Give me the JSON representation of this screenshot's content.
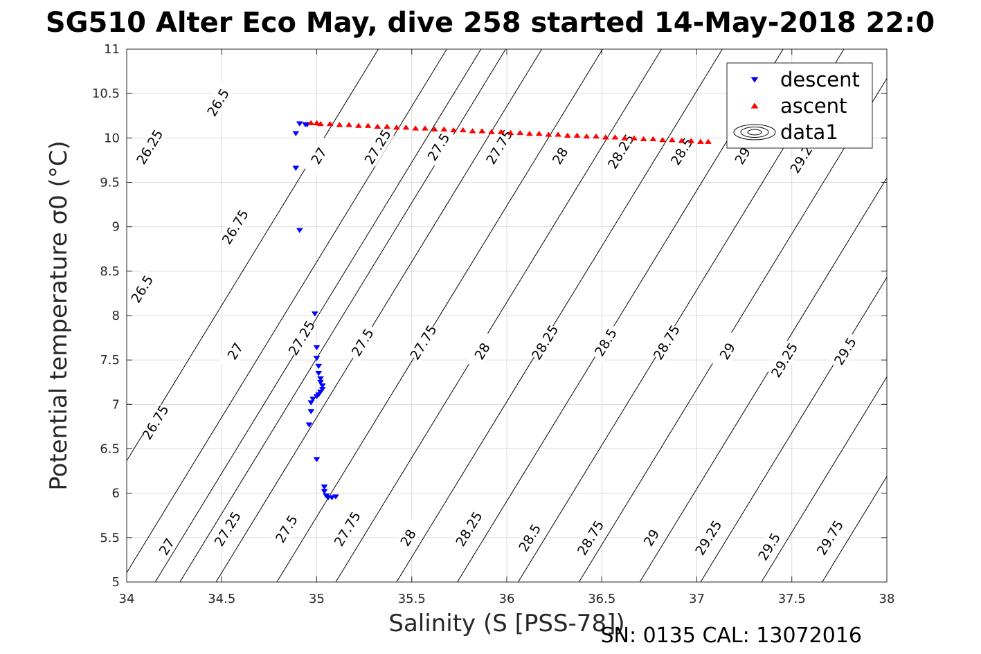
{
  "chart_data": {
    "type": "scatter",
    "title": "SG510 Alter Eco May, dive 258 started 14-May-2018 22:0",
    "xlabel": "Salinity (S [PSS-78])",
    "ylabel": "Potential temperature σ0 (°C)",
    "xlim": [
      34,
      38
    ],
    "ylim": [
      5,
      11
    ],
    "x_ticks": [
      "34",
      "34.5",
      "35",
      "35.5",
      "36",
      "36.5",
      "37",
      "37.5",
      "38"
    ],
    "y_ticks": [
      "5",
      "5.5",
      "6",
      "6.5",
      "7",
      "7.5",
      "8",
      "8.5",
      "9",
      "9.5",
      "10",
      "10.5",
      "11"
    ],
    "grid": true,
    "legend_position": "top-right",
    "footer": "SN: 0135  CAL: 13072016",
    "series": [
      {
        "name": "descent",
        "marker": "triangle-down",
        "color": "#0000ff",
        "points": [
          [
            34.91,
            10.16
          ],
          [
            34.95,
            10.15
          ],
          [
            34.94,
            10.15
          ],
          [
            34.89,
            10.05
          ],
          [
            34.89,
            9.66
          ],
          [
            34.91,
            8.96
          ],
          [
            34.99,
            8.02
          ],
          [
            35.0,
            7.64
          ],
          [
            35.0,
            7.52
          ],
          [
            35.01,
            7.43
          ],
          [
            35.01,
            7.35
          ],
          [
            35.02,
            7.29
          ],
          [
            35.02,
            7.25
          ],
          [
            35.03,
            7.21
          ],
          [
            35.03,
            7.17
          ],
          [
            35.02,
            7.14
          ],
          [
            35.01,
            7.11
          ],
          [
            35.0,
            7.09
          ],
          [
            34.98,
            7.06
          ],
          [
            34.97,
            7.02
          ],
          [
            34.97,
            6.92
          ],
          [
            34.96,
            6.77
          ],
          [
            35.0,
            6.38
          ],
          [
            35.04,
            6.07
          ],
          [
            35.04,
            6.02
          ],
          [
            35.05,
            5.97
          ],
          [
            35.06,
            5.95
          ],
          [
            35.08,
            5.95
          ],
          [
            35.1,
            5.96
          ]
        ]
      },
      {
        "name": "ascent",
        "marker": "triangle-up",
        "color": "#ff0000",
        "points": [
          [
            34.97,
            10.17
          ],
          [
            35.0,
            10.17
          ],
          [
            35.02,
            10.16
          ],
          [
            35.07,
            10.16
          ],
          [
            35.12,
            10.15
          ],
          [
            35.17,
            10.15
          ],
          [
            35.22,
            10.14
          ],
          [
            35.27,
            10.14
          ],
          [
            35.32,
            10.13
          ],
          [
            35.37,
            10.13
          ],
          [
            35.42,
            10.12
          ],
          [
            35.47,
            10.12
          ],
          [
            35.52,
            10.11
          ],
          [
            35.57,
            10.11
          ],
          [
            35.62,
            10.1
          ],
          [
            35.67,
            10.1
          ],
          [
            35.72,
            10.09
          ],
          [
            35.77,
            10.09
          ],
          [
            35.82,
            10.08
          ],
          [
            35.87,
            10.08
          ],
          [
            35.92,
            10.07
          ],
          [
            35.97,
            10.07
          ],
          [
            36.02,
            10.06
          ],
          [
            36.07,
            10.06
          ],
          [
            36.12,
            10.05
          ],
          [
            36.17,
            10.05
          ],
          [
            36.22,
            10.04
          ],
          [
            36.27,
            10.04
          ],
          [
            36.32,
            10.03
          ],
          [
            36.37,
            10.03
          ],
          [
            36.42,
            10.02
          ],
          [
            36.47,
            10.02
          ],
          [
            36.52,
            10.01
          ],
          [
            36.57,
            10.01
          ],
          [
            36.62,
            10.0
          ],
          [
            36.67,
            10.0
          ],
          [
            36.72,
            9.99
          ],
          [
            36.77,
            9.99
          ],
          [
            36.82,
            9.98
          ],
          [
            36.87,
            9.98
          ],
          [
            36.92,
            9.97
          ],
          [
            36.97,
            9.97
          ],
          [
            37.02,
            9.96
          ],
          [
            37.06,
            9.96
          ]
        ]
      },
      {
        "name": "data1",
        "marker": "contour",
        "color": "#000000",
        "points": []
      }
    ],
    "contours": {
      "slope_degC_per_psu": 3.5,
      "levels": [
        {
          "v": 26.25,
          "s0": 34.0,
          "s_at_t5": 33.61,
          "labels": [
            [
              34.12,
              9.9
            ]
          ]
        },
        {
          "v": 26.5,
          "s0": 34.36,
          "s_at_t5": 33.97,
          "labels": [
            [
              34.48,
              10.4
            ],
            [
              34.08,
              8.3
            ]
          ]
        },
        {
          "v": 26.75,
          "s0": 34.67,
          "s_at_t5": 34.28,
          "labels": [
            [
              34.57,
              9.0
            ],
            [
              34.15,
              6.8
            ]
          ]
        },
        {
          "v": 27,
          "s0": 34.97,
          "s_at_t5": 34.15,
          "labels": [
            [
              35.01,
              9.8
            ],
            [
              34.57,
              7.6
            ],
            [
              34.21,
              5.4
            ]
          ]
        },
        {
          "v": 27.25,
          "s0": 35.25,
          "s_at_t5": 34.47,
          "labels": [
            [
              35.32,
              9.9
            ],
            [
              34.92,
              7.75
            ],
            [
              34.53,
              5.6
            ]
          ]
        },
        {
          "v": 27.5,
          "s0": 35.57,
          "s_at_t5": 34.79,
          "labels": [
            [
              35.64,
              9.9
            ],
            [
              35.24,
              7.7
            ],
            [
              34.84,
              5.6
            ]
          ]
        },
        {
          "v": 27.75,
          "s0": 35.88,
          "s_at_t5": 35.1,
          "labels": [
            [
              35.96,
              9.9
            ],
            [
              35.56,
              7.7
            ],
            [
              35.16,
              5.6
            ]
          ]
        },
        {
          "v": 28,
          "s0": 36.2,
          "s_at_t5": 35.42,
          "labels": [
            [
              36.28,
              9.8
            ],
            [
              35.87,
              7.6
            ],
            [
              35.48,
              5.5
            ]
          ]
        },
        {
          "v": 28.25,
          "s0": 36.52,
          "s_at_t5": 35.74,
          "labels": [
            [
              36.6,
              9.85
            ],
            [
              36.2,
              7.7
            ],
            [
              35.8,
              5.6
            ]
          ]
        },
        {
          "v": 28.5,
          "s0": 36.84,
          "s_at_t5": 36.06,
          "labels": [
            [
              36.92,
              9.85
            ],
            [
              36.52,
              7.7
            ],
            [
              36.12,
              5.5
            ]
          ]
        },
        {
          "v": 28.75,
          "s0": 37.16,
          "s_at_t5": 36.38,
          "labels": [
            [
              36.84,
              7.7
            ],
            [
              36.44,
              5.5
            ]
          ]
        },
        {
          "v": 29,
          "s0": 37.48,
          "s_at_t5": 36.7,
          "labels": [
            [
              37.24,
              9.8
            ],
            [
              37.16,
              7.6
            ],
            [
              36.76,
              5.5
            ]
          ]
        },
        {
          "v": 29.25,
          "s0": 37.8,
          "s_at_t5": 37.02,
          "labels": [
            [
              37.56,
              9.8
            ],
            [
              37.46,
              7.5
            ],
            [
              37.06,
              5.5
            ]
          ]
        },
        {
          "v": 29.5,
          "s0": 38.12,
          "s_at_t5": 37.34,
          "labels": [
            [
              37.78,
              7.6
            ],
            [
              37.38,
              5.4
            ]
          ]
        },
        {
          "v": 29.75,
          "s0": 38.44,
          "s_at_t5": 37.66,
          "labels": [
            [
              37.7,
              5.5
            ]
          ]
        }
      ]
    }
  }
}
